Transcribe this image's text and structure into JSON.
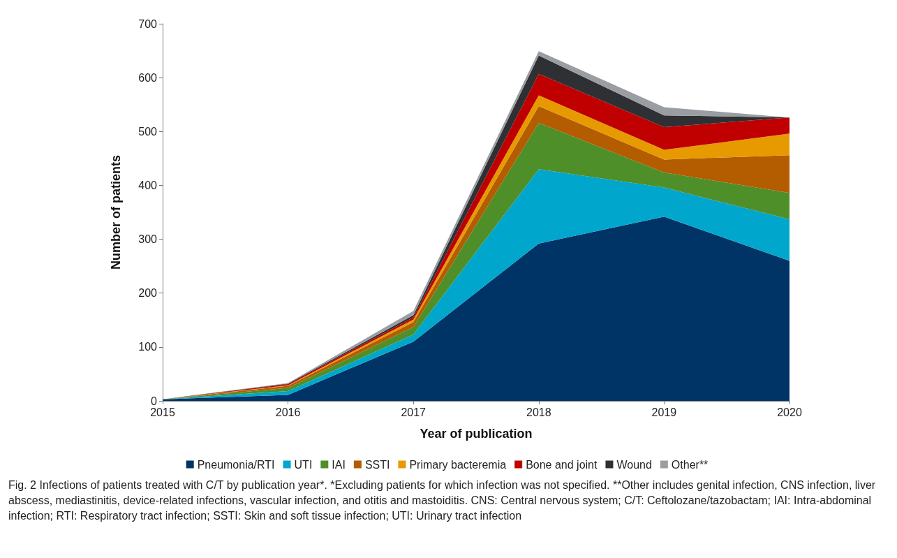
{
  "chart_data": {
    "type": "area",
    "stacked": true,
    "xlabel": "Year of publication",
    "ylabel": "Number of patients",
    "categories": [
      "2015",
      "2016",
      "2017",
      "2018",
      "2019",
      "2020"
    ],
    "ylim": [
      0,
      700
    ],
    "yticks": [
      0,
      100,
      200,
      300,
      400,
      500,
      600,
      700
    ],
    "grid": false,
    "legend": "bottom",
    "series": [
      {
        "name": "Pneumonia/RTI",
        "color": "#003366",
        "values": [
          3,
          11,
          110,
          292,
          342,
          260
        ]
      },
      {
        "name": "UTI",
        "color": "#00a6cc",
        "values": [
          0,
          7,
          13,
          138,
          54,
          77
        ]
      },
      {
        "name": "IAI",
        "color": "#4f8f2a",
        "values": [
          0,
          6,
          14,
          86,
          28,
          49
        ]
      },
      {
        "name": "SSTI",
        "color": "#b35c00",
        "values": [
          0,
          4,
          9,
          31,
          24,
          70
        ]
      },
      {
        "name": "Primary bacteremia",
        "color": "#e69a00",
        "values": [
          0,
          1,
          5,
          20,
          18,
          40
        ]
      },
      {
        "name": "Bone and joint",
        "color": "#c00000",
        "values": [
          0,
          2,
          4,
          40,
          42,
          30
        ]
      },
      {
        "name": "Wound",
        "color": "#2e3033",
        "values": [
          0,
          1,
          4,
          34,
          22,
          0
        ]
      },
      {
        "name": "Other**",
        "color": "#9a9ea3",
        "values": [
          0,
          1,
          8,
          8,
          15,
          0
        ]
      }
    ],
    "annotations": [
      "Fig. 2  Infections of patients treated with C/T by publication year*. *Excluding patients for which infection was not specified. **Other includes genital infection, CNS infection, liver abscess, mediastinitis, device-related infections, vascular infection, and otitis and mastoiditis. CNS: Central nervous system; C/T: Ceftolozane/tazobactam; IAI: Intra-abdominal infection; RTI: Respiratory tract infection; SSTI: Skin and soft tissue infection; UTI: Urinary tract infection"
    ]
  }
}
